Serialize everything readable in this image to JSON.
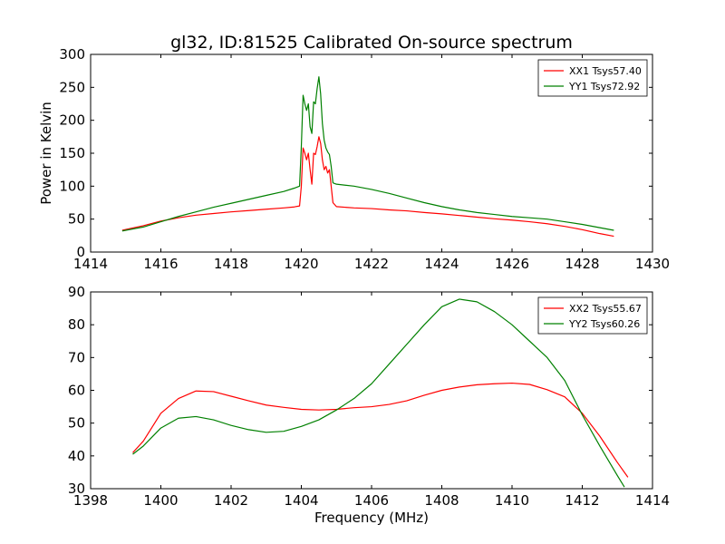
{
  "figure_title": "gl32, ID:81525 Calibrated On-source spectrum",
  "chart_data": [
    {
      "type": "line",
      "xlabel": "",
      "ylabel": "Power in Kelvin",
      "xlim": [
        1414,
        1430
      ],
      "ylim": [
        0,
        300
      ],
      "xticks": [
        1414,
        1416,
        1418,
        1420,
        1422,
        1424,
        1426,
        1428,
        1430
      ],
      "yticks": [
        0,
        50,
        100,
        150,
        200,
        250,
        300
      ],
      "grid": false,
      "legend_position": "top-right",
      "series": [
        {
          "name": "XX1 Tsys57.40",
          "color": "#ff0000",
          "points": [
            [
              1414.9,
              33
            ],
            [
              1415.5,
              40
            ],
            [
              1416,
              47
            ],
            [
              1416.5,
              52
            ],
            [
              1417,
              56
            ],
            [
              1417.5,
              58.5
            ],
            [
              1418,
              61
            ],
            [
              1418.5,
              63
            ],
            [
              1419,
              65
            ],
            [
              1419.5,
              67
            ],
            [
              1419.8,
              68.5
            ],
            [
              1419.95,
              70
            ],
            [
              1420.0,
              100
            ],
            [
              1420.05,
              158
            ],
            [
              1420.1,
              150
            ],
            [
              1420.15,
              140
            ],
            [
              1420.2,
              150
            ],
            [
              1420.25,
              125
            ],
            [
              1420.3,
              103
            ],
            [
              1420.35,
              150
            ],
            [
              1420.4,
              148
            ],
            [
              1420.45,
              160
            ],
            [
              1420.5,
              175
            ],
            [
              1420.55,
              165
            ],
            [
              1420.6,
              140
            ],
            [
              1420.65,
              125
            ],
            [
              1420.7,
              130
            ],
            [
              1420.75,
              120
            ],
            [
              1420.8,
              125
            ],
            [
              1420.85,
              100
            ],
            [
              1420.9,
              75
            ],
            [
              1421,
              69
            ],
            [
              1421.5,
              67
            ],
            [
              1422,
              66
            ],
            [
              1422.5,
              64
            ],
            [
              1423,
              62.5
            ],
            [
              1423.5,
              60
            ],
            [
              1424,
              58
            ],
            [
              1424.5,
              55.5
            ],
            [
              1425,
              53
            ],
            [
              1425.5,
              50.5
            ],
            [
              1426,
              48.5
            ],
            [
              1426.5,
              46
            ],
            [
              1427,
              43
            ],
            [
              1427.5,
              39
            ],
            [
              1428,
              34
            ],
            [
              1428.5,
              28
            ],
            [
              1428.9,
              24
            ]
          ]
        },
        {
          "name": "YY1 Tsys72.92",
          "color": "#008000",
          "points": [
            [
              1414.9,
              32
            ],
            [
              1415.5,
              38
            ],
            [
              1416,
              46
            ],
            [
              1416.5,
              54
            ],
            [
              1417,
              61
            ],
            [
              1417.5,
              68
            ],
            [
              1418,
              74
            ],
            [
              1418.5,
              80
            ],
            [
              1419,
              86
            ],
            [
              1419.5,
              92
            ],
            [
              1419.8,
              97
            ],
            [
              1419.95,
              100
            ],
            [
              1420.0,
              160
            ],
            [
              1420.05,
              238
            ],
            [
              1420.1,
              225
            ],
            [
              1420.15,
              215
            ],
            [
              1420.2,
              225
            ],
            [
              1420.25,
              190
            ],
            [
              1420.3,
              180
            ],
            [
              1420.35,
              228
            ],
            [
              1420.4,
              225
            ],
            [
              1420.45,
              248
            ],
            [
              1420.5,
              266
            ],
            [
              1420.55,
              240
            ],
            [
              1420.6,
              195
            ],
            [
              1420.65,
              170
            ],
            [
              1420.7,
              158
            ],
            [
              1420.75,
              152
            ],
            [
              1420.8,
              148
            ],
            [
              1420.85,
              130
            ],
            [
              1420.9,
              105
            ],
            [
              1421,
              103
            ],
            [
              1421.5,
              100
            ],
            [
              1422,
              95
            ],
            [
              1422.5,
              89
            ],
            [
              1423,
              82
            ],
            [
              1423.5,
              75
            ],
            [
              1424,
              69
            ],
            [
              1424.5,
              64
            ],
            [
              1425,
              60
            ],
            [
              1425.5,
              57
            ],
            [
              1426,
              54
            ],
            [
              1426.5,
              52
            ],
            [
              1427,
              50
            ],
            [
              1427.5,
              46
            ],
            [
              1428,
              42
            ],
            [
              1428.5,
              37
            ],
            [
              1428.9,
              33
            ]
          ]
        }
      ]
    },
    {
      "type": "line",
      "xlabel": "Frequency (MHz)",
      "ylabel": "",
      "xlim": [
        1398,
        1414
      ],
      "ylim": [
        30,
        90
      ],
      "xticks": [
        1398,
        1400,
        1402,
        1404,
        1406,
        1408,
        1410,
        1412,
        1414
      ],
      "yticks": [
        30,
        40,
        50,
        60,
        70,
        80,
        90
      ],
      "grid": false,
      "legend_position": "top-right",
      "series": [
        {
          "name": "XX2 Tsys55.67",
          "color": "#ff0000",
          "points": [
            [
              1399.2,
              41
            ],
            [
              1399.5,
              44.5
            ],
            [
              1400,
              53
            ],
            [
              1400.5,
              57.5
            ],
            [
              1401,
              59.8
            ],
            [
              1401.5,
              59.6
            ],
            [
              1402,
              58.2
            ],
            [
              1402.5,
              56.8
            ],
            [
              1403,
              55.5
            ],
            [
              1403.5,
              54.8
            ],
            [
              1404,
              54.2
            ],
            [
              1404.5,
              54
            ],
            [
              1405,
              54.2
            ],
            [
              1405.5,
              54.7
            ],
            [
              1406,
              55
            ],
            [
              1406.5,
              55.7
            ],
            [
              1407,
              56.8
            ],
            [
              1407.5,
              58.5
            ],
            [
              1408,
              60
            ],
            [
              1408.5,
              61
            ],
            [
              1409,
              61.7
            ],
            [
              1409.5,
              62
            ],
            [
              1410,
              62.2
            ],
            [
              1410.5,
              61.8
            ],
            [
              1411,
              60.2
            ],
            [
              1411.5,
              58
            ],
            [
              1412,
              53
            ],
            [
              1412.5,
              46
            ],
            [
              1413,
              38
            ],
            [
              1413.3,
              33.5
            ]
          ]
        },
        {
          "name": "YY2 Tsys60.26",
          "color": "#008000",
          "points": [
            [
              1399.2,
              40.5
            ],
            [
              1399.5,
              43
            ],
            [
              1400,
              48.5
            ],
            [
              1400.5,
              51.5
            ],
            [
              1401,
              52
            ],
            [
              1401.5,
              51
            ],
            [
              1402,
              49.3
            ],
            [
              1402.5,
              48
            ],
            [
              1403,
              47.2
            ],
            [
              1403.5,
              47.5
            ],
            [
              1404,
              49
            ],
            [
              1404.5,
              51
            ],
            [
              1405,
              54
            ],
            [
              1405.5,
              57.5
            ],
            [
              1406,
              62
            ],
            [
              1406.5,
              68
            ],
            [
              1407,
              74
            ],
            [
              1407.5,
              80
            ],
            [
              1408,
              85.5
            ],
            [
              1408.5,
              87.8
            ],
            [
              1409,
              87
            ],
            [
              1409.5,
              84
            ],
            [
              1410,
              80
            ],
            [
              1410.5,
              75
            ],
            [
              1411,
              70
            ],
            [
              1411.5,
              63
            ],
            [
              1412,
              52.5
            ],
            [
              1412.5,
              43
            ],
            [
              1413,
              34
            ],
            [
              1413.2,
              30.5
            ]
          ]
        }
      ]
    }
  ]
}
